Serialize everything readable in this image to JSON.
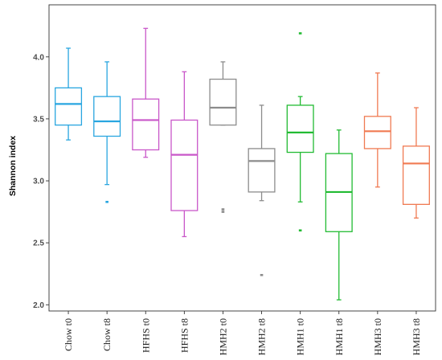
{
  "chart_data": {
    "type": "box",
    "title": "",
    "xlabel": "",
    "ylabel": "Shannon index",
    "ylim": [
      1.95,
      4.42
    ],
    "yticks": [
      {
        "value": 2.0,
        "label": "2.0"
      },
      {
        "value": 2.5,
        "label": "2.5"
      },
      {
        "value": 3.0,
        "label": "3.0"
      },
      {
        "value": 3.5,
        "label": "3.5"
      },
      {
        "value": 4.0,
        "label": "4.0"
      }
    ],
    "grid": false,
    "legend": "none",
    "categories": [
      "Chow t0",
      "Chow t8",
      "HFHS t0",
      "HFHS t8",
      "HMH2 t0",
      "HMH2 t8",
      "HMH1 t0",
      "HMH1 t8",
      "HMH3 t0",
      "HMH3 t8"
    ],
    "boxes": [
      {
        "category": "Chow t0",
        "whisker_low": 3.33,
        "q1": 3.45,
        "median": 3.62,
        "q3": 3.75,
        "whisker_high": 4.07,
        "outliers": [],
        "color": "#29a6e0"
      },
      {
        "category": "Chow t8",
        "whisker_low": 2.97,
        "q1": 3.36,
        "median": 3.48,
        "q3": 3.68,
        "whisker_high": 3.96,
        "outliers": [
          2.83
        ],
        "color": "#29a6e0"
      },
      {
        "category": "HFHS t0",
        "whisker_low": 3.19,
        "q1": 3.25,
        "median": 3.49,
        "q3": 3.66,
        "whisker_high": 4.23,
        "outliers": [],
        "color": "#c957c9"
      },
      {
        "category": "HFHS t8",
        "whisker_low": 2.55,
        "q1": 2.76,
        "median": 3.21,
        "q3": 3.49,
        "whisker_high": 3.88,
        "outliers": [],
        "color": "#c957c9"
      },
      {
        "category": "HMH2 t0",
        "whisker_low": 3.45,
        "q1": 3.45,
        "median": 3.59,
        "q3": 3.82,
        "whisker_high": 3.96,
        "outliers": [
          2.77,
          2.75
        ],
        "color": "#8c8c8c"
      },
      {
        "category": "HMH2 t8",
        "whisker_low": 2.84,
        "q1": 2.91,
        "median": 3.16,
        "q3": 3.26,
        "whisker_high": 3.61,
        "outliers": [
          2.24
        ],
        "color": "#8c8c8c"
      },
      {
        "category": "HMH1 t0",
        "whisker_low": 2.83,
        "q1": 3.23,
        "median": 3.39,
        "q3": 3.61,
        "whisker_high": 3.68,
        "outliers": [
          4.19,
          2.6
        ],
        "color": "#22bb33"
      },
      {
        "category": "HMH1 t8",
        "whisker_low": 2.04,
        "q1": 2.59,
        "median": 2.91,
        "q3": 3.22,
        "whisker_high": 3.41,
        "outliers": [],
        "color": "#22bb33"
      },
      {
        "category": "HMH3 t0",
        "whisker_low": 2.95,
        "q1": 3.26,
        "median": 3.4,
        "q3": 3.52,
        "whisker_high": 3.87,
        "outliers": [],
        "color": "#f07a52"
      },
      {
        "category": "HMH3 t8",
        "whisker_low": 2.7,
        "q1": 2.81,
        "median": 3.14,
        "q3": 3.28,
        "whisker_high": 3.59,
        "outliers": [],
        "color": "#f07a52"
      }
    ]
  }
}
